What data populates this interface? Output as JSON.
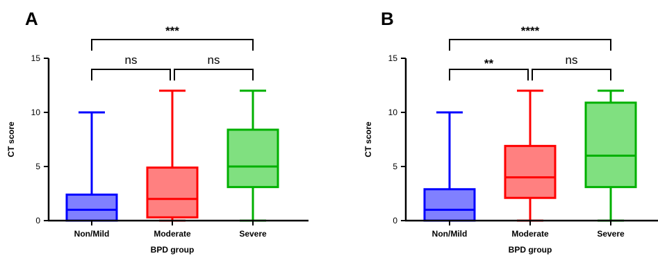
{
  "chart_data": [
    {
      "type": "box",
      "panel_label": "A",
      "xlabel": "BPD group",
      "ylabel": "CT score",
      "ylim": [
        0,
        15
      ],
      "yticks": [
        0,
        5,
        10,
        15
      ],
      "categories": [
        "Non/Mild",
        "Moderate",
        "Severe"
      ],
      "boxes": [
        {
          "category": "Non/Mild",
          "min": 0,
          "q1": 0,
          "median": 1,
          "q3": 2.4,
          "max": 10,
          "color": "#0000ff",
          "fill": "#8080ff"
        },
        {
          "category": "Moderate",
          "min": 0,
          "q1": 0.3,
          "median": 2,
          "q3": 4.9,
          "max": 12,
          "color": "#ff0000",
          "fill": "#ff8080"
        },
        {
          "category": "Severe",
          "min": 0,
          "q1": 3.1,
          "median": 5,
          "q3": 8.4,
          "max": 12,
          "color": "#00b000",
          "fill": "#80e080"
        }
      ],
      "comparisons": [
        {
          "from": "Non/Mild",
          "to": "Moderate",
          "label": "ns",
          "level": 1
        },
        {
          "from": "Moderate",
          "to": "Severe",
          "label": "ns",
          "level": 1
        },
        {
          "from": "Non/Mild",
          "to": "Severe",
          "label": "***",
          "level": 2
        }
      ]
    },
    {
      "type": "box",
      "panel_label": "B",
      "xlabel": "BPD group",
      "ylabel": "CT score",
      "ylim": [
        0,
        15
      ],
      "yticks": [
        0,
        5,
        10,
        15
      ],
      "categories": [
        "Non/Mild",
        "Moderate",
        "Severe"
      ],
      "boxes": [
        {
          "category": "Non/Mild",
          "min": 0,
          "q1": 0,
          "median": 1,
          "q3": 2.9,
          "max": 10,
          "color": "#0000ff",
          "fill": "#8080ff"
        },
        {
          "category": "Moderate",
          "min": 0,
          "q1": 2.1,
          "median": 4,
          "q3": 6.9,
          "max": 12,
          "color": "#ff0000",
          "fill": "#ff8080"
        },
        {
          "category": "Severe",
          "min": 0,
          "q1": 3.1,
          "median": 6,
          "q3": 10.9,
          "max": 12,
          "color": "#00b000",
          "fill": "#80e080"
        }
      ],
      "comparisons": [
        {
          "from": "Non/Mild",
          "to": "Moderate",
          "label": "**",
          "level": 1
        },
        {
          "from": "Moderate",
          "to": "Severe",
          "label": "ns",
          "level": 1
        },
        {
          "from": "Non/Mild",
          "to": "Severe",
          "label": "****",
          "level": 2
        }
      ]
    }
  ]
}
